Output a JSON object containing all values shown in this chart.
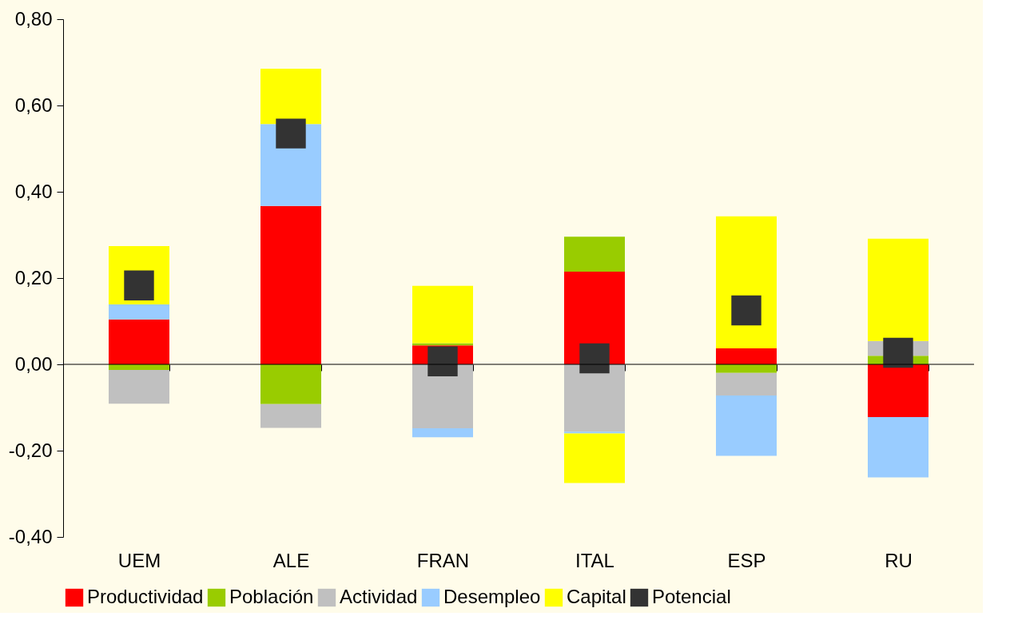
{
  "chart_data": {
    "type": "bar",
    "stacked": true,
    "categories": [
      "UEM",
      "ALE",
      "FRAN",
      "ITAL",
      "ESP",
      "RU"
    ],
    "series": [
      {
        "name": "Productividad",
        "color": "#ff0000",
        "values": [
          0.104,
          0.367,
          0.044,
          0.215,
          0.037,
          -0.122
        ]
      },
      {
        "name": "Población",
        "color": "#99cc00",
        "values": [
          -0.013,
          -0.092,
          0.005,
          0.081,
          -0.02,
          0.02
        ]
      },
      {
        "name": "Actividad",
        "color": "#c0c0c0",
        "values": [
          -0.078,
          -0.055,
          -0.148,
          -0.156,
          -0.052,
          0.034
        ]
      },
      {
        "name": "Desempleo",
        "color": "#99ccff",
        "values": [
          0.035,
          0.19,
          -0.021,
          -0.004,
          -0.14,
          -0.14
        ]
      },
      {
        "name": "Capital",
        "color": "#ffff00",
        "values": [
          0.135,
          0.128,
          0.133,
          -0.115,
          0.306,
          0.237
        ]
      },
      {
        "name": "Potencial",
        "color": "#333333",
        "type": "scatter",
        "marker": "square",
        "values": [
          0.183,
          0.535,
          0.007,
          0.014,
          0.125,
          0.027
        ]
      }
    ],
    "ylim": [
      -0.4,
      0.8
    ],
    "yticks": [
      {
        "value": -0.4,
        "label": "-0,40"
      },
      {
        "value": -0.2,
        "label": "-0,20"
      },
      {
        "value": 0,
        "label": "0,00"
      },
      {
        "value": 0.2,
        "label": "0,20"
      },
      {
        "value": 0.4,
        "label": "0,40"
      },
      {
        "value": 0.6,
        "label": "0,60"
      },
      {
        "value": 0.8,
        "label": "0,80"
      }
    ],
    "ref_lines": [
      {
        "axis": "y",
        "value": 0,
        "color": "#000000"
      }
    ],
    "grid": false,
    "legend": "bottom"
  }
}
